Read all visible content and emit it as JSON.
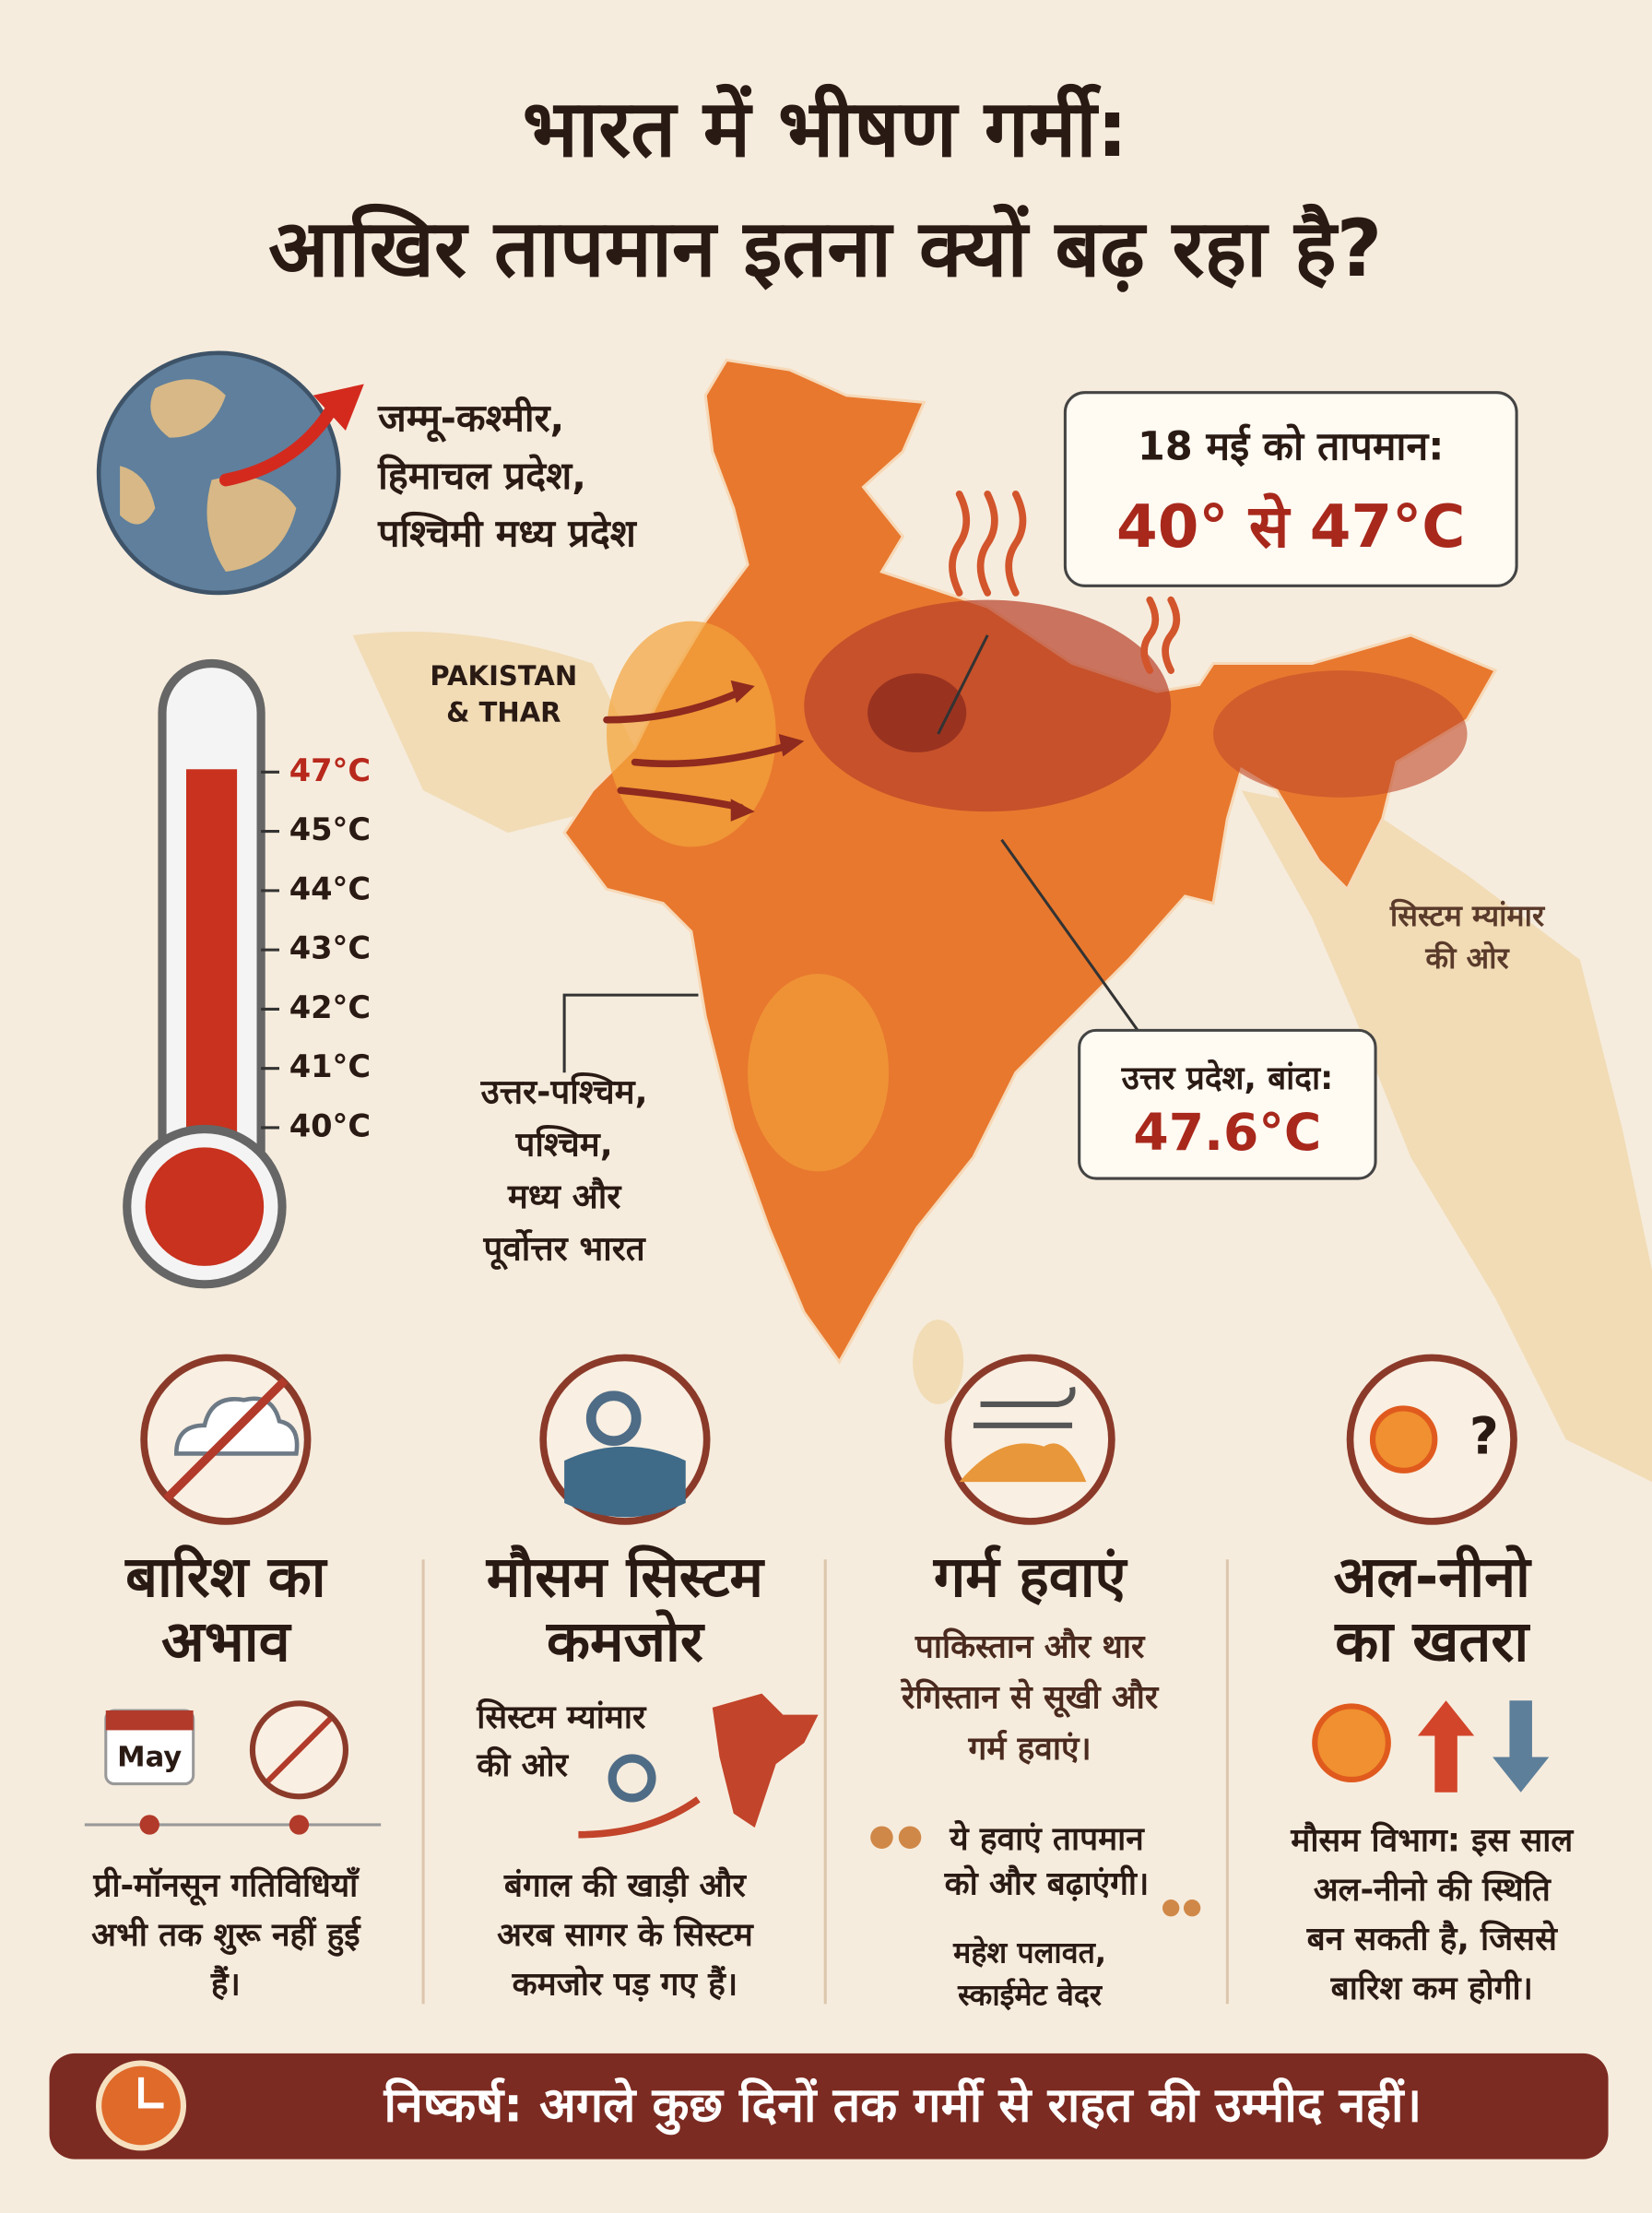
{
  "header": {
    "title_lines": [
      "भारत में भीषण गर्मी:",
      "आखिर तापमान इतना क्यों बढ़ रहा है?"
    ]
  },
  "globe": {
    "label_lines": [
      "जम्मू-कश्मीर,",
      "हिमाचल प्रदेश,",
      "पश्चिमी मध्य प्रदेश"
    ]
  },
  "map": {
    "region_label_lines": [
      "PAKISTAN",
      "& THAR"
    ],
    "myanmar_label_lines": [
      "सिस्टम म्यांमार",
      "की ओर"
    ],
    "affected_label_lines": [
      "उत्तर-पश्चिम,",
      "पश्चिम,",
      "मध्य और",
      "पूर्वोत्तर भारत"
    ],
    "callout_peak": {
      "heading": "18 मई को तापमान:",
      "value": "40° से 47°C"
    },
    "callout_banda": {
      "heading": "उत्तर प्रदेश, बांदा:",
      "value": "47.6°C"
    }
  },
  "thermometer": {
    "scale": [
      "47°C",
      "45°C",
      "44°C",
      "43°C",
      "42°C",
      "41°C",
      "40°C"
    ]
  },
  "columns": [
    {
      "heading_lines": [
        "बारिश का",
        "अभाव"
      ],
      "calendar_label": "May",
      "body_lines": [
        "प्री-मॉनसून गतिविधियाँ",
        "अभी तक शुरू नहीं हुई",
        "हैं।"
      ]
    },
    {
      "heading_lines": [
        "मौसम सिस्टम",
        "कमजोर"
      ],
      "icon_label_lines": [
        "सिस्टम म्यांमार",
        "की ओर"
      ],
      "body_lines": [
        "बंगाल की खाड़ी और",
        "अरब सागर के सिस्टम",
        "कमजोर पड़ गए हैं।"
      ]
    },
    {
      "heading_lines": [
        "गर्म हवाएं"
      ],
      "body_lines": [
        "पाकिस्तान और थार",
        "रेगिस्तान से सूखी और",
        "गर्म हवाएं।"
      ],
      "quote_lines": [
        "ये हवाएं तापमान",
        "को और बढ़ाएंगी।"
      ],
      "attribution_lines": [
        "महेश पलावत,",
        "स्काईमेट वेदर"
      ]
    },
    {
      "heading_lines": [
        "अल-नीनो",
        "का खतरा"
      ],
      "icon_label": "?",
      "body_lines": [
        "मौसम विभाग: इस साल",
        "अल-नीनो की स्थिति",
        "बन सकती है, जिससे",
        "बारिश कम होगी।"
      ]
    }
  ],
  "conclusion": "निष्कर्ष: अगले कुछ दिनों तक गर्मी से राहत की उम्मीद नहीं।"
}
